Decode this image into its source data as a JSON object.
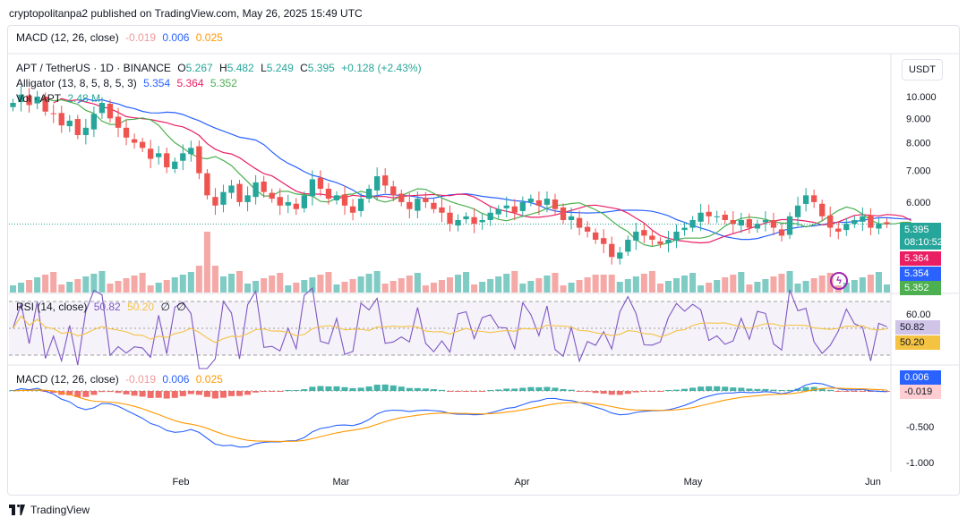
{
  "header": {
    "text": "cryptopolitanpa2 published on TradingView.com, May 26, 2025 15:49 UTC"
  },
  "macd_top": {
    "label": "MACD (12, 26, close)",
    "v1": "-0.019",
    "v2": "0.006",
    "v3": "0.025"
  },
  "main_legend": {
    "symbol": "APT / TetherUS · 1D · BINANCE",
    "o_label": "O",
    "o": "5.267",
    "h_label": "H",
    "h": "5.482",
    "l_label": "L",
    "l": "5.249",
    "c_label": "C",
    "c": "5.395",
    "chg": "+0.128 (+2.43%)",
    "alligator_label": "Alligator (13, 8, 5, 8, 5, 3)",
    "jaw": "5.354",
    "teeth": "5.364",
    "lips": "5.352",
    "vol_label": "Vol · APT",
    "vol": "2.48 M"
  },
  "currency_button": "USDT",
  "price_tags": {
    "last": "5.395",
    "countdown": "08:10:52",
    "teeth": "5.364",
    "jaw": "5.354",
    "lips": "5.352"
  },
  "rsi_legend": {
    "label": "RSI (14, close)",
    "rsi": "50.82",
    "ma": "50.20",
    "x1": "∅",
    "x2": "∅"
  },
  "rsi_tags": {
    "rsi": "50.82",
    "ma": "50.20"
  },
  "macd_legend": {
    "label": "MACD (12, 26, close)",
    "hist": "-0.019",
    "macd": "0.006",
    "signal": "0.025"
  },
  "macd_tags": {
    "macd": "0.006",
    "hist": "-0.019"
  },
  "footer": {
    "brand": "TradingView"
  },
  "colors": {
    "up": "#26a69a",
    "down": "#ef5350",
    "jaw": "#2962ff",
    "teeth": "#e91e63",
    "lips": "#4caf50",
    "rsi": "#7e57c2",
    "rsi_ma": "#f5c342",
    "macd": "#2962ff",
    "signal": "#ff9800"
  },
  "chart_data": {
    "type": "candlestick",
    "symbol": "APT / TetherUS",
    "timeframe": "1D",
    "price_axis": {
      "ticks": [
        "10.000",
        "9.000",
        "8.000",
        "7.000",
        "6.000"
      ],
      "scale": "log"
    },
    "rsi_axis": {
      "ticks": [
        "60.00"
      ]
    },
    "macd_axis": {
      "ticks": [
        "-0.500",
        "-1.000"
      ]
    },
    "time_axis": [
      "Feb",
      "Mar",
      "Apr",
      "May",
      "Jun"
    ],
    "close_approx": [
      9.7,
      10.1,
      9.6,
      10.0,
      9.3,
      9.2,
      8.7,
      8.9,
      8.3,
      8.6,
      9.2,
      9.7,
      9.0,
      8.6,
      8.2,
      8.0,
      7.8,
      7.4,
      7.6,
      7.1,
      7.3,
      7.6,
      7.8,
      6.9,
      6.2,
      5.9,
      6.3,
      6.5,
      6.0,
      6.2,
      6.6,
      6.3,
      6.1,
      5.9,
      6.0,
      5.8,
      6.2,
      6.7,
      6.4,
      6.1,
      6.2,
      5.9,
      5.7,
      6.1,
      6.4,
      6.8,
      6.5,
      6.2,
      6.0,
      5.8,
      6.1,
      6.0,
      5.8,
      5.7,
      5.4,
      5.5,
      5.6,
      5.4,
      5.5,
      5.7,
      5.8,
      5.9,
      5.7,
      6.0,
      6.1,
      5.9,
      6.1,
      5.8,
      5.5,
      5.6,
      5.3,
      5.2,
      5.0,
      4.9,
      4.6,
      4.7,
      5.0,
      5.2,
      5.1,
      5.0,
      4.9,
      5.0,
      5.2,
      5.3,
      5.5,
      5.7,
      5.6,
      5.6,
      5.5,
      5.4,
      5.5,
      5.3,
      5.4,
      5.5,
      5.3,
      5.1,
      5.6,
      5.9,
      6.2,
      6.0,
      5.6,
      5.3,
      5.2,
      5.4,
      5.5,
      5.6,
      5.3,
      5.4,
      5.4
    ]
  }
}
